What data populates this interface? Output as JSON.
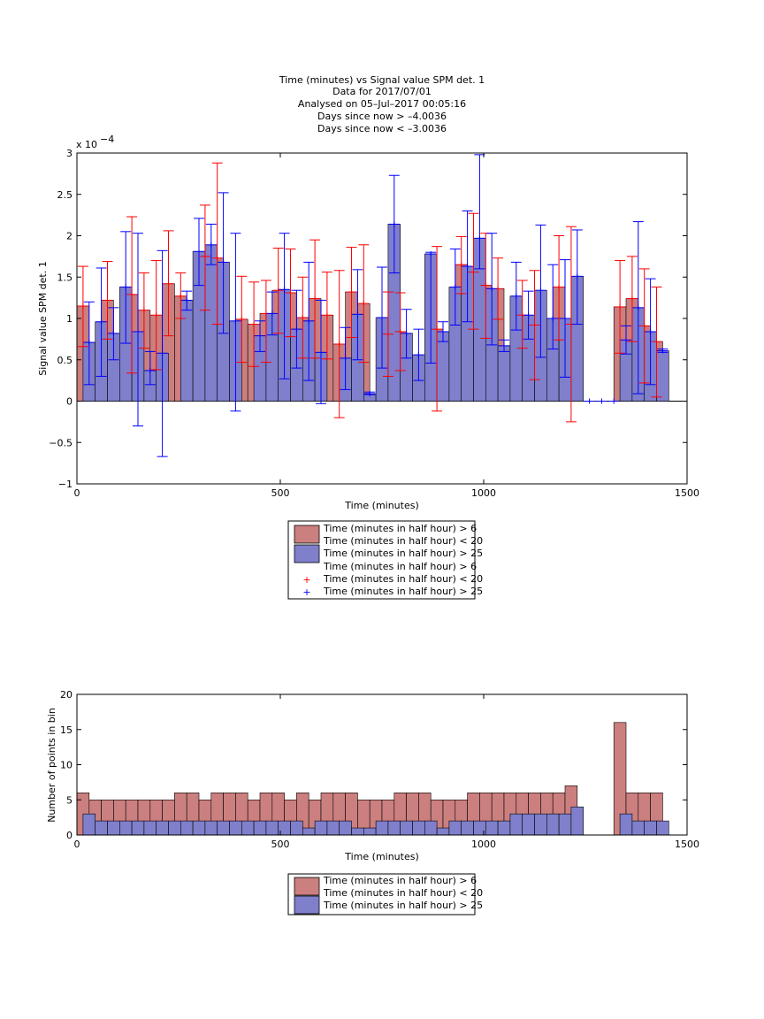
{
  "chart_data": [
    {
      "type": "bar",
      "title": [
        "Time (minutes) vs Signal value SPM det. 1",
        "Data for 2017/07/01",
        "Analysed on 05–Jul–2017 00:05:16",
        "Days since now > –4.0036",
        "Days since now < –3.0036"
      ],
      "xlabel": "Time (minutes)",
      "ylabel": "Signal value SPM det. 1",
      "xlim": [
        0,
        1500
      ],
      "ylim": [
        -1,
        3
      ],
      "exponent_label": "x 10",
      "exponent_power": "−4",
      "xticks": [
        "0",
        "500",
        "1000",
        "1500"
      ],
      "yticks": [
        "−1",
        "−0.5",
        "0",
        "0.5",
        "1",
        "1.5",
        "2",
        "2.5",
        "3"
      ],
      "bin_width": 30,
      "x": [
        0,
        30,
        60,
        90,
        120,
        150,
        180,
        210,
        240,
        270,
        300,
        330,
        360,
        390,
        420,
        450,
        480,
        510,
        540,
        570,
        600,
        630,
        660,
        690,
        720,
        750,
        780,
        810,
        840,
        870,
        900,
        930,
        960,
        990,
        1020,
        1050,
        1080,
        1110,
        1140,
        1170,
        1200,
        1230,
        1260,
        1290,
        1320,
        1350,
        1380,
        1410
      ],
      "legend": [
        {
          "label": "Time (minutes in half hour) > 6",
          "kind": "bar",
          "color": "#cc7f7f"
        },
        {
          "label": "Time (minutes in half hour) < 20",
          "kind": "none"
        },
        {
          "label": "Time (minutes in half hour) > 25",
          "kind": "bar",
          "color": "#7f7fcc"
        },
        {
          "label": "Time (minutes in half hour) > 6",
          "kind": "none"
        },
        {
          "label": "Time (minutes in half hour) < 20",
          "kind": "plus",
          "color": "#ff0000"
        },
        {
          "label": "Time (minutes in half hour) > 25",
          "kind": "plus",
          "color": "#0000ff"
        }
      ],
      "series": [
        {
          "color": "#cc7f7f",
          "err_color": "#ff0000",
          "offset": 0,
          "values": [
            1.15,
            null,
            1.22,
            null,
            1.29,
            1.1,
            1.04,
            1.42,
            1.27,
            null,
            1.75,
            1.73,
            null,
            0.99,
            0.93,
            1.06,
            1.34,
            1.31,
            1.01,
            1.24,
            1.04,
            0.69,
            1.32,
            1.18,
            null,
            0.81,
            0.84,
            null,
            null,
            0.87,
            null,
            1.65,
            1.56,
            1.4,
            1.36,
            null,
            1.04,
            0.92,
            null,
            1.38,
            0.93,
            null,
            null,
            null,
            1.14,
            1.24,
            0.91,
            0.72
          ],
          "lo": [
            0.66,
            null,
            0.75,
            null,
            0.34,
            0.64,
            0.38,
            0.79,
            1.0,
            null,
            1.1,
            0.93,
            null,
            0.47,
            0.42,
            0.47,
            0.82,
            0.78,
            0.52,
            0.52,
            0.51,
            -0.2,
            0.77,
            0.47,
            null,
            0.3,
            0.37,
            null,
            null,
            -0.12,
            null,
            1.3,
            0.87,
            0.76,
            0.99,
            null,
            0.64,
            0.26,
            null,
            0.74,
            -0.25,
            null,
            null,
            null,
            0.58,
            0.72,
            0.22,
            0.05
          ],
          "hi": [
            1.63,
            null,
            1.69,
            null,
            2.23,
            1.55,
            1.7,
            2.06,
            1.55,
            null,
            2.37,
            2.88,
            null,
            1.51,
            1.44,
            1.46,
            1.85,
            1.84,
            1.5,
            1.95,
            1.56,
            1.58,
            1.86,
            1.89,
            null,
            1.32,
            1.31,
            null,
            null,
            1.87,
            null,
            1.99,
            2.27,
            2.03,
            1.73,
            null,
            1.46,
            1.58,
            null,
            2.0,
            2.11,
            null,
            null,
            null,
            1.7,
            1.75,
            1.6,
            1.38
          ]
        },
        {
          "color": "#7f7fcc",
          "err_color": "#0000ff",
          "offset": 15,
          "values": [
            0.71,
            0.96,
            0.82,
            1.38,
            0.84,
            0.37,
            0.58,
            null,
            1.22,
            1.81,
            1.89,
            1.68,
            0.97,
            null,
            0.79,
            1.06,
            1.35,
            0.87,
            0.97,
            0.59,
            null,
            0.52,
            1.05,
            0.09,
            1.01,
            2.14,
            0.82,
            0.56,
            1.78,
            0.84,
            1.38,
            1.63,
            1.97,
            1.36,
            0.67,
            1.27,
            1.04,
            1.34,
            1.0,
            1.0,
            1.51,
            0.0,
            0.0,
            0.0,
            0.74,
            1.13,
            0.84,
            0.61
          ],
          "lo": [
            0.2,
            0.3,
            0.5,
            0.7,
            -0.3,
            0.2,
            -0.67,
            null,
            1.1,
            1.4,
            1.65,
            0.82,
            -0.12,
            null,
            0.6,
            0.8,
            0.27,
            0.4,
            0.25,
            -0.03,
            null,
            0.14,
            0.5,
            0.08,
            0.4,
            1.55,
            0.52,
            0.25,
            0.46,
            0.72,
            0.92,
            0.96,
            1.6,
            0.68,
            0.6,
            0.86,
            0.75,
            0.53,
            0.63,
            0.29,
            0.93,
            null,
            null,
            null,
            0.57,
            0.09,
            0.2,
            0.59
          ],
          "hi": [
            1.2,
            1.61,
            1.13,
            2.05,
            2.03,
            0.6,
            1.82,
            null,
            1.33,
            2.21,
            2.14,
            2.52,
            2.03,
            null,
            0.97,
            1.32,
            2.03,
            1.34,
            1.68,
            1.22,
            null,
            0.89,
            1.59,
            0.11,
            1.62,
            2.73,
            1.11,
            0.87,
            1.8,
            0.96,
            1.84,
            2.3,
            2.98,
            2.03,
            0.74,
            1.68,
            1.33,
            2.13,
            1.65,
            1.71,
            2.07,
            null,
            null,
            null,
            0.91,
            2.17,
            1.48,
            0.63
          ]
        }
      ]
    },
    {
      "type": "bar",
      "xlabel": "Time (minutes)",
      "ylabel": "Number of points in bin",
      "xlim": [
        0,
        1500
      ],
      "ylim": [
        0,
        20
      ],
      "xticks": [
        "0",
        "500",
        "1000",
        "1500"
      ],
      "yticks": [
        "0",
        "5",
        "10",
        "15",
        "20"
      ],
      "bin_width": 30,
      "x": [
        0,
        30,
        60,
        90,
        120,
        150,
        180,
        210,
        240,
        270,
        300,
        330,
        360,
        390,
        420,
        450,
        480,
        510,
        540,
        570,
        600,
        630,
        660,
        690,
        720,
        750,
        780,
        810,
        840,
        870,
        900,
        930,
        960,
        990,
        1020,
        1050,
        1080,
        1110,
        1140,
        1170,
        1200,
        1230,
        1260,
        1290,
        1320,
        1350,
        1380,
        1410
      ],
      "legend": [
        {
          "label": "Time (minutes in half hour) > 6",
          "kind": "bar",
          "color": "#cc7f7f"
        },
        {
          "label": "Time (minutes in half hour) < 20",
          "kind": "none"
        },
        {
          "label": "Time (minutes in half hour) > 25",
          "kind": "bar",
          "color": "#7f7fcc"
        }
      ],
      "series": [
        {
          "color": "#cc7f7f",
          "offset": 0,
          "values": [
            6,
            5,
            5,
            5,
            5,
            5,
            5,
            5,
            6,
            6,
            5,
            6,
            6,
            6,
            5,
            6,
            6,
            5,
            6,
            5,
            6,
            6,
            6,
            5,
            5,
            5,
            6,
            6,
            6,
            5,
            5,
            5,
            6,
            6,
            6,
            6,
            6,
            6,
            6,
            6,
            7,
            0,
            0,
            0,
            16,
            6,
            6,
            6
          ]
        },
        {
          "color": "#7f7fcc",
          "offset": 15,
          "values": [
            3,
            2,
            2,
            2,
            2,
            2,
            2,
            2,
            2,
            2,
            2,
            2,
            2,
            2,
            2,
            2,
            2,
            2,
            1,
            2,
            2,
            2,
            1,
            1,
            2,
            2,
            2,
            2,
            2,
            1,
            2,
            2,
            2,
            2,
            2,
            3,
            3,
            3,
            3,
            3,
            4,
            0,
            0,
            0,
            3,
            2,
            2,
            2
          ]
        }
      ]
    }
  ]
}
